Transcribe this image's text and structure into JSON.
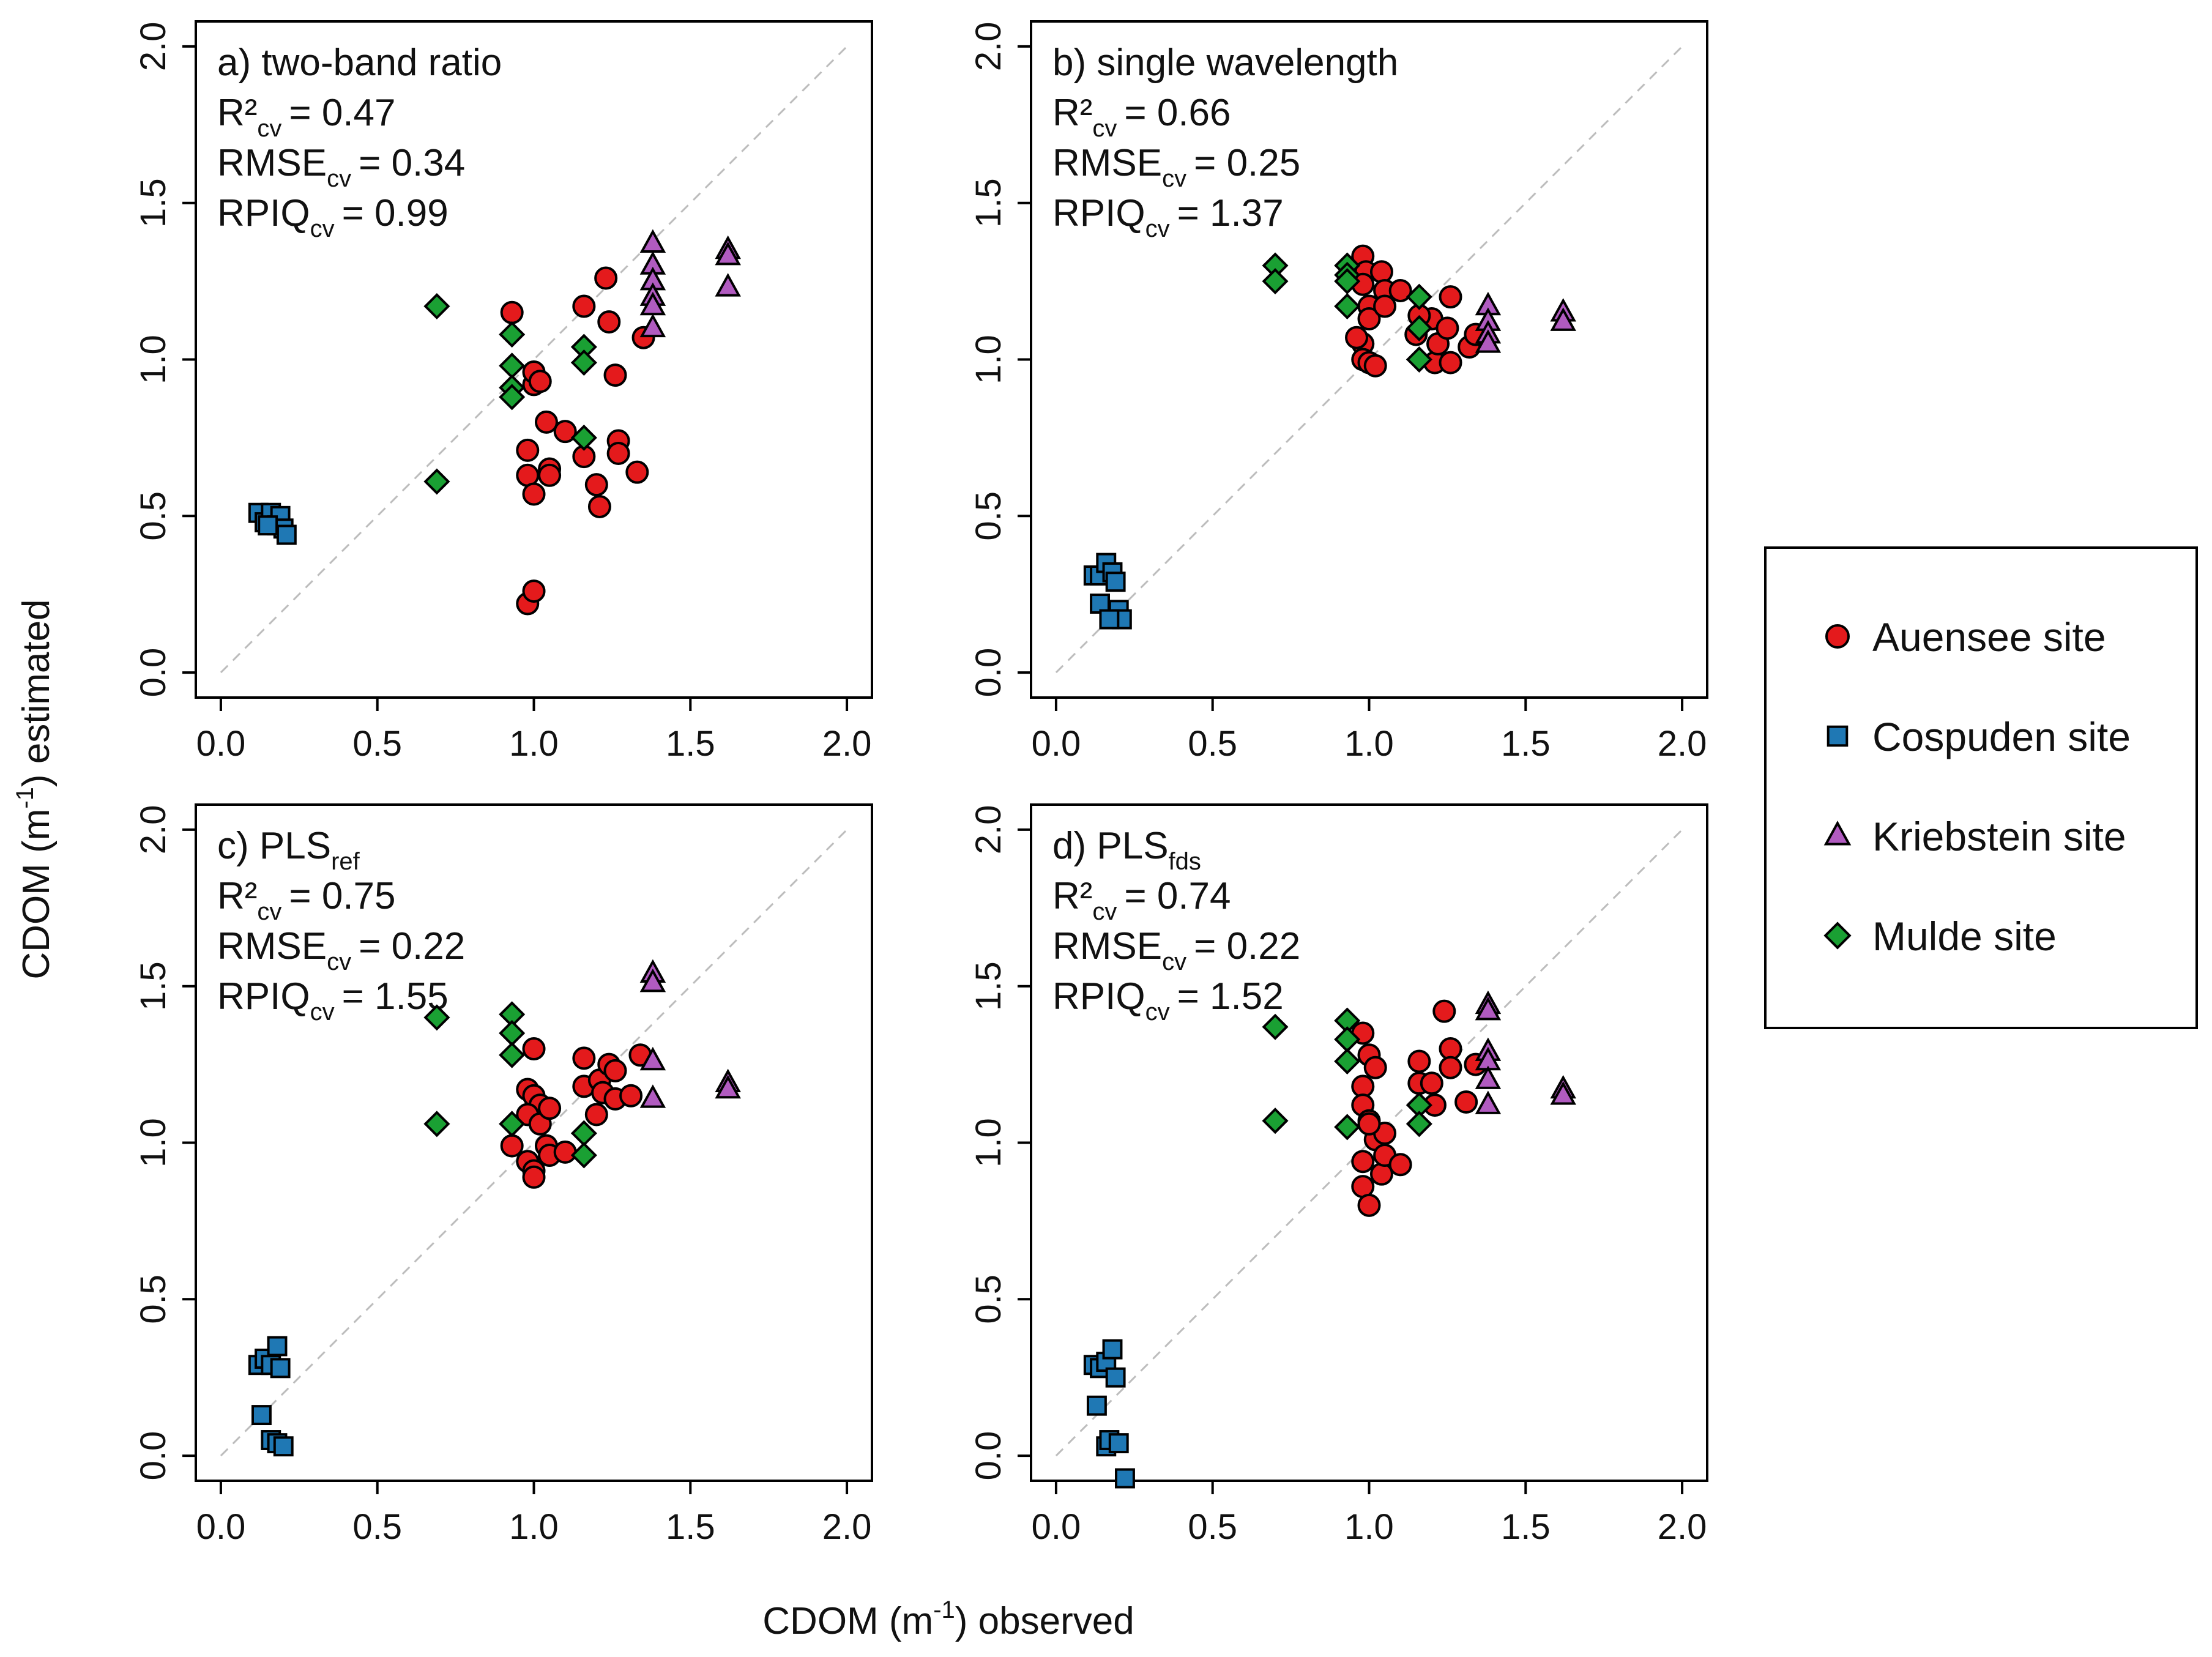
{
  "y_axis_label": {
    "prefix": "CDOM (m",
    "sup": "-1",
    "suffix": ") estimated"
  },
  "x_axis_label": {
    "prefix": "CDOM (m",
    "sup": "-1",
    "suffix": ") observed"
  },
  "legend": {
    "items": [
      {
        "label": "Auensee site",
        "marker": "circle",
        "color": "#e41a1c"
      },
      {
        "label": "Cospuden site",
        "marker": "square",
        "color": "#1f78b4"
      },
      {
        "label": "Kriebstein site",
        "marker": "triangle",
        "color": "#b15bc0"
      },
      {
        "label": "Mulde site",
        "marker": "diamond",
        "color": "#1aa033"
      }
    ]
  },
  "chart_data": [
    {
      "type": "scatter",
      "panel": "a",
      "title": {
        "main": "a) two-band ratio",
        "sub": ""
      },
      "stats": [
        {
          "base": "R²",
          "sub": "cv",
          "value": "= 0.47"
        },
        {
          "base": "RMSE",
          "sub": "cv",
          "value": "= 0.34"
        },
        {
          "base": "RPIQ",
          "sub": "cv",
          "value": "= 0.99"
        }
      ],
      "xlim": [
        0,
        2
      ],
      "ylim": [
        0,
        2
      ],
      "xticks": [
        "0.0",
        "0.5",
        "1.0",
        "1.5",
        "2.0"
      ],
      "yticks": [
        "0.0",
        "0.5",
        "1.0",
        "1.5",
        "2.0"
      ],
      "reference_line": "1:1",
      "series": [
        {
          "name": "Auensee site",
          "marker": "circle",
          "color": "#e41a1c",
          "points": [
            [
              0.93,
              1.15
            ],
            [
              1.0,
              0.92
            ],
            [
              1.0,
              0.96
            ],
            [
              1.02,
              0.93
            ],
            [
              0.98,
              0.71
            ],
            [
              0.98,
              0.63
            ],
            [
              1.0,
              0.57
            ],
            [
              1.04,
              0.8
            ],
            [
              1.05,
              0.65
            ],
            [
              1.05,
              0.63
            ],
            [
              1.1,
              0.77
            ],
            [
              1.16,
              0.69
            ],
            [
              1.16,
              1.17
            ],
            [
              1.2,
              0.6
            ],
            [
              1.21,
              0.53
            ],
            [
              1.23,
              1.26
            ],
            [
              1.24,
              1.12
            ],
            [
              1.26,
              0.95
            ],
            [
              1.27,
              0.74
            ],
            [
              1.27,
              0.7
            ],
            [
              1.33,
              0.64
            ],
            [
              1.35,
              1.07
            ],
            [
              0.98,
              0.22
            ],
            [
              1.0,
              0.26
            ]
          ]
        },
        {
          "name": "Cospuden site",
          "marker": "square",
          "color": "#1f78b4",
          "points": [
            [
              0.12,
              0.51
            ],
            [
              0.14,
              0.48
            ],
            [
              0.16,
              0.51
            ],
            [
              0.18,
              0.47
            ],
            [
              0.19,
              0.5
            ],
            [
              0.2,
              0.46
            ],
            [
              0.21,
              0.44
            ],
            [
              0.15,
              0.47
            ]
          ]
        },
        {
          "name": "Kriebstein site",
          "marker": "triangle",
          "color": "#b15bc0",
          "points": [
            [
              1.38,
              1.37
            ],
            [
              1.38,
              1.3
            ],
            [
              1.38,
              1.25
            ],
            [
              1.38,
              1.2
            ],
            [
              1.38,
              1.17
            ],
            [
              1.38,
              1.1
            ],
            [
              1.62,
              1.35
            ],
            [
              1.62,
              1.33
            ],
            [
              1.62,
              1.23
            ]
          ]
        },
        {
          "name": "Mulde site",
          "marker": "diamond",
          "color": "#1aa033",
          "points": [
            [
              0.69,
              1.17
            ],
            [
              0.69,
              0.61
            ],
            [
              0.93,
              1.08
            ],
            [
              0.93,
              0.98
            ],
            [
              0.93,
              0.91
            ],
            [
              0.93,
              0.88
            ],
            [
              1.16,
              1.04
            ],
            [
              1.16,
              0.99
            ],
            [
              1.16,
              0.75
            ]
          ]
        }
      ]
    },
    {
      "type": "scatter",
      "panel": "b",
      "title": {
        "main": "b) single wavelength",
        "sub": ""
      },
      "stats": [
        {
          "base": "R²",
          "sub": "cv",
          "value": "= 0.66"
        },
        {
          "base": "RMSE",
          "sub": "cv",
          "value": "= 0.25"
        },
        {
          "base": "RPIQ",
          "sub": "cv",
          "value": "= 1.37"
        }
      ],
      "xlim": [
        0,
        2
      ],
      "ylim": [
        0,
        2
      ],
      "xticks": [
        "0.0",
        "0.5",
        "1.0",
        "1.5",
        "2.0"
      ],
      "yticks": [
        "0.0",
        "0.5",
        "1.0",
        "1.5",
        "2.0"
      ],
      "reference_line": "1:1",
      "series": [
        {
          "name": "Auensee site",
          "marker": "circle",
          "color": "#e41a1c",
          "points": [
            [
              0.98,
              1.33
            ],
            [
              0.99,
              1.28
            ],
            [
              0.98,
              1.24
            ],
            [
              1.0,
              1.17
            ],
            [
              1.0,
              1.13
            ],
            [
              0.98,
              1.05
            ],
            [
              0.96,
              1.07
            ],
            [
              0.98,
              1.0
            ],
            [
              1.0,
              0.99
            ],
            [
              1.02,
              0.98
            ],
            [
              1.04,
              1.28
            ],
            [
              1.05,
              1.22
            ],
            [
              1.05,
              1.17
            ],
            [
              1.1,
              1.22
            ],
            [
              1.15,
              1.08
            ],
            [
              1.2,
              1.13
            ],
            [
              1.21,
              0.99
            ],
            [
              1.22,
              1.05
            ],
            [
              1.25,
              1.1
            ],
            [
              1.26,
              1.2
            ],
            [
              1.26,
              0.99
            ],
            [
              1.32,
              1.04
            ],
            [
              1.34,
              1.08
            ],
            [
              1.16,
              1.14
            ]
          ]
        },
        {
          "name": "Cospuden site",
          "marker": "square",
          "color": "#1f78b4",
          "points": [
            [
              0.12,
              0.31
            ],
            [
              0.14,
              0.31
            ],
            [
              0.16,
              0.35
            ],
            [
              0.18,
              0.32
            ],
            [
              0.19,
              0.29
            ],
            [
              0.2,
              0.2
            ],
            [
              0.21,
              0.17
            ],
            [
              0.14,
              0.22
            ],
            [
              0.17,
              0.17
            ]
          ]
        },
        {
          "name": "Kriebstein site",
          "marker": "triangle",
          "color": "#b15bc0",
          "points": [
            [
              1.38,
              1.17
            ],
            [
              1.38,
              1.12
            ],
            [
              1.38,
              1.08
            ],
            [
              1.38,
              1.05
            ],
            [
              1.62,
              1.15
            ],
            [
              1.62,
              1.12
            ]
          ]
        },
        {
          "name": "Mulde site",
          "marker": "diamond",
          "color": "#1aa033",
          "points": [
            [
              0.7,
              1.3
            ],
            [
              0.7,
              1.25
            ],
            [
              0.93,
              1.3
            ],
            [
              0.93,
              1.27
            ],
            [
              0.93,
              1.25
            ],
            [
              0.93,
              1.17
            ],
            [
              1.16,
              1.2
            ],
            [
              1.16,
              1.1
            ],
            [
              1.16,
              1.0
            ]
          ]
        }
      ]
    },
    {
      "type": "scatter",
      "panel": "c",
      "title": {
        "main": "c) PLS",
        "sub": "ref"
      },
      "stats": [
        {
          "base": "R²",
          "sub": "cv",
          "value": "= 0.75"
        },
        {
          "base": "RMSE",
          "sub": "cv",
          "value": "= 0.22"
        },
        {
          "base": "RPIQ",
          "sub": "cv",
          "value": "= 1.55"
        }
      ],
      "xlim": [
        0,
        2
      ],
      "ylim": [
        0,
        2
      ],
      "xticks": [
        "0.0",
        "0.5",
        "1.0",
        "1.5",
        "2.0"
      ],
      "yticks": [
        "0.0",
        "0.5",
        "1.0",
        "1.5",
        "2.0"
      ],
      "reference_line": "1:1",
      "series": [
        {
          "name": "Auensee site",
          "marker": "circle",
          "color": "#e41a1c",
          "points": [
            [
              1.0,
              1.3
            ],
            [
              0.98,
              1.17
            ],
            [
              1.0,
              1.15
            ],
            [
              1.02,
              1.12
            ],
            [
              0.98,
              1.09
            ],
            [
              1.02,
              1.06
            ],
            [
              0.93,
              0.99
            ],
            [
              0.98,
              0.94
            ],
            [
              1.0,
              0.91
            ],
            [
              1.0,
              0.89
            ],
            [
              1.04,
              0.99
            ],
            [
              1.05,
              0.96
            ],
            [
              1.05,
              1.11
            ],
            [
              1.1,
              0.97
            ],
            [
              1.16,
              1.27
            ],
            [
              1.16,
              1.18
            ],
            [
              1.2,
              1.09
            ],
            [
              1.21,
              1.2
            ],
            [
              1.22,
              1.16
            ],
            [
              1.24,
              1.25
            ],
            [
              1.26,
              1.23
            ],
            [
              1.26,
              1.14
            ],
            [
              1.31,
              1.15
            ],
            [
              1.34,
              1.28
            ]
          ]
        },
        {
          "name": "Cospuden site",
          "marker": "square",
          "color": "#1f78b4",
          "points": [
            [
              0.12,
              0.29
            ],
            [
              0.14,
              0.31
            ],
            [
              0.16,
              0.29
            ],
            [
              0.18,
              0.35
            ],
            [
              0.19,
              0.28
            ],
            [
              0.13,
              0.13
            ],
            [
              0.16,
              0.05
            ],
            [
              0.18,
              0.04
            ],
            [
              0.2,
              0.03
            ]
          ]
        },
        {
          "name": "Kriebstein site",
          "marker": "triangle",
          "color": "#b15bc0",
          "points": [
            [
              1.38,
              1.54
            ],
            [
              1.38,
              1.51
            ],
            [
              1.38,
              1.26
            ],
            [
              1.38,
              1.14
            ],
            [
              1.62,
              1.19
            ],
            [
              1.62,
              1.17
            ]
          ]
        },
        {
          "name": "Mulde site",
          "marker": "diamond",
          "color": "#1aa033",
          "points": [
            [
              0.69,
              1.4
            ],
            [
              0.69,
              1.06
            ],
            [
              0.93,
              1.41
            ],
            [
              0.93,
              1.35
            ],
            [
              0.93,
              1.28
            ],
            [
              0.93,
              1.06
            ],
            [
              1.16,
              1.03
            ],
            [
              1.16,
              0.96
            ]
          ]
        }
      ]
    },
    {
      "type": "scatter",
      "panel": "d",
      "title": {
        "main": "d) PLS",
        "sub": "fds"
      },
      "stats": [
        {
          "base": "R²",
          "sub": "cv",
          "value": "= 0.74"
        },
        {
          "base": "RMSE",
          "sub": "cv",
          "value": "= 0.22"
        },
        {
          "base": "RPIQ",
          "sub": "cv",
          "value": "= 1.52"
        }
      ],
      "xlim": [
        0,
        2
      ],
      "ylim": [
        0,
        2
      ],
      "xticks": [
        "0.0",
        "0.5",
        "1.0",
        "1.5",
        "2.0"
      ],
      "yticks": [
        "0.0",
        "0.5",
        "1.0",
        "1.5",
        "2.0"
      ],
      "reference_line": "1:1",
      "series": [
        {
          "name": "Auensee site",
          "marker": "circle",
          "color": "#e41a1c",
          "points": [
            [
              0.98,
              1.35
            ],
            [
              1.0,
              1.28
            ],
            [
              1.02,
              1.24
            ],
            [
              0.98,
              1.18
            ],
            [
              0.98,
              1.12
            ],
            [
              1.0,
              1.07
            ],
            [
              1.02,
              1.01
            ],
            [
              0.98,
              0.94
            ],
            [
              0.98,
              0.86
            ],
            [
              1.0,
              0.8
            ],
            [
              1.04,
              0.9
            ],
            [
              1.05,
              0.96
            ],
            [
              1.05,
              1.03
            ],
            [
              1.1,
              0.93
            ],
            [
              1.16,
              1.26
            ],
            [
              1.16,
              1.19
            ],
            [
              1.2,
              1.19
            ],
            [
              1.21,
              1.12
            ],
            [
              1.24,
              1.42
            ],
            [
              1.26,
              1.3
            ],
            [
              1.26,
              1.24
            ],
            [
              1.31,
              1.13
            ],
            [
              1.34,
              1.25
            ],
            [
              1.0,
              1.06
            ]
          ]
        },
        {
          "name": "Cospuden site",
          "marker": "square",
          "color": "#1f78b4",
          "points": [
            [
              0.12,
              0.29
            ],
            [
              0.14,
              0.28
            ],
            [
              0.16,
              0.3
            ],
            [
              0.18,
              0.34
            ],
            [
              0.19,
              0.25
            ],
            [
              0.13,
              0.16
            ],
            [
              0.16,
              0.03
            ],
            [
              0.17,
              0.05
            ],
            [
              0.2,
              0.04
            ],
            [
              0.22,
              -0.09
            ]
          ]
        },
        {
          "name": "Kriebstein site",
          "marker": "triangle",
          "color": "#b15bc0",
          "points": [
            [
              1.38,
              1.44
            ],
            [
              1.38,
              1.42
            ],
            [
              1.38,
              1.29
            ],
            [
              1.38,
              1.26
            ],
            [
              1.38,
              1.2
            ],
            [
              1.38,
              1.12
            ],
            [
              1.62,
              1.17
            ],
            [
              1.62,
              1.15
            ]
          ]
        },
        {
          "name": "Mulde site",
          "marker": "diamond",
          "color": "#1aa033",
          "points": [
            [
              0.7,
              1.37
            ],
            [
              0.7,
              1.07
            ],
            [
              0.93,
              1.39
            ],
            [
              0.93,
              1.33
            ],
            [
              0.93,
              1.26
            ],
            [
              0.93,
              1.05
            ],
            [
              1.16,
              1.12
            ],
            [
              1.16,
              1.06
            ]
          ]
        }
      ]
    }
  ]
}
